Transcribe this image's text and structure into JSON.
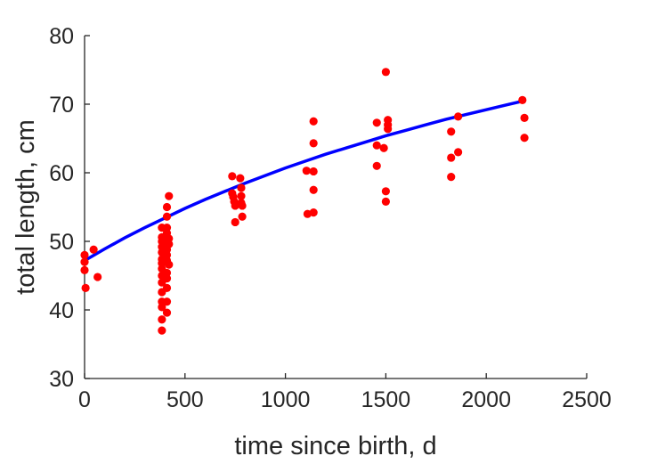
{
  "chart_data": {
    "type": "scatter",
    "xlabel": "time since birth, d",
    "ylabel": "total length, cm",
    "xlim": [
      0,
      2500
    ],
    "ylim": [
      30,
      80
    ],
    "xticks": [
      0,
      500,
      1000,
      1500,
      2000,
      2500
    ],
    "yticks": [
      30,
      40,
      50,
      60,
      70,
      80
    ],
    "grid": false,
    "colors": {
      "points": "#ff0000",
      "fit_line": "#0000ff",
      "axis": "#262626"
    },
    "series": [
      {
        "kind": "points",
        "points": [
          [
            0,
            48.0
          ],
          [
            0,
            47.0
          ],
          [
            0,
            45.8
          ],
          [
            5,
            43.2
          ],
          [
            45,
            48.8
          ],
          [
            65,
            44.8
          ],
          [
            385,
            52.0
          ],
          [
            385,
            50.6
          ],
          [
            385,
            50.0
          ],
          [
            385,
            49.2
          ],
          [
            385,
            48.4
          ],
          [
            385,
            47.4
          ],
          [
            385,
            46.8
          ],
          [
            385,
            46.0
          ],
          [
            385,
            45.0
          ],
          [
            385,
            44.0
          ],
          [
            385,
            42.6
          ],
          [
            385,
            41.2
          ],
          [
            385,
            40.4
          ],
          [
            385,
            38.6
          ],
          [
            385,
            37.0
          ],
          [
            410,
            55.0
          ],
          [
            410,
            53.6
          ],
          [
            410,
            52.0
          ],
          [
            410,
            51.2
          ],
          [
            410,
            50.4
          ],
          [
            410,
            49.6
          ],
          [
            410,
            48.8
          ],
          [
            410,
            48.0
          ],
          [
            410,
            47.2
          ],
          [
            410,
            45.4
          ],
          [
            410,
            44.6
          ],
          [
            410,
            43.2
          ],
          [
            410,
            41.2
          ],
          [
            410,
            39.6
          ],
          [
            420,
            56.6
          ],
          [
            420,
            50.4
          ],
          [
            420,
            49.6
          ],
          [
            420,
            46.6
          ],
          [
            735,
            59.5
          ],
          [
            735,
            57.0
          ],
          [
            740,
            56.5
          ],
          [
            745,
            55.8
          ],
          [
            750,
            55.2
          ],
          [
            750,
            52.8
          ],
          [
            775,
            59.2
          ],
          [
            780,
            57.8
          ],
          [
            780,
            56.6
          ],
          [
            780,
            55.6
          ],
          [
            785,
            55.2
          ],
          [
            785,
            53.6
          ],
          [
            1105,
            60.3
          ],
          [
            1110,
            54.0
          ],
          [
            1140,
            67.5
          ],
          [
            1140,
            64.3
          ],
          [
            1140,
            60.2
          ],
          [
            1140,
            57.5
          ],
          [
            1140,
            54.2
          ],
          [
            1455,
            67.3
          ],
          [
            1455,
            64.0
          ],
          [
            1455,
            61.0
          ],
          [
            1490,
            63.6
          ],
          [
            1500,
            74.7
          ],
          [
            1500,
            57.3
          ],
          [
            1500,
            55.8
          ],
          [
            1510,
            67.7
          ],
          [
            1510,
            67.0
          ],
          [
            1510,
            66.4
          ],
          [
            1825,
            66.0
          ],
          [
            1825,
            62.2
          ],
          [
            1825,
            59.4
          ],
          [
            1860,
            68.2
          ],
          [
            1860,
            63.0
          ],
          [
            2180,
            70.6
          ],
          [
            2190,
            68.0
          ],
          [
            2190,
            65.1
          ]
        ]
      },
      {
        "kind": "line",
        "x": [
          0,
          100,
          200,
          300,
          400,
          500,
          600,
          700,
          800,
          900,
          1000,
          1100,
          1200,
          1300,
          1400,
          1500,
          1600,
          1700,
          1800,
          1900,
          2000,
          2100,
          2190
        ],
        "y": [
          47.2,
          48.9,
          50.5,
          52.0,
          53.4,
          54.8,
          56.1,
          57.3,
          58.5,
          59.6,
          60.7,
          61.7,
          62.7,
          63.6,
          64.5,
          65.4,
          66.2,
          67.0,
          67.8,
          68.5,
          69.2,
          69.9,
          70.5
        ]
      }
    ]
  }
}
